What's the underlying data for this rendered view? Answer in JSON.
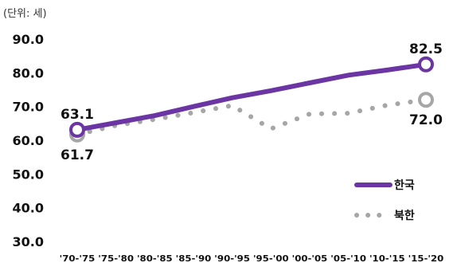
{
  "unit_label": "(단위: 세)",
  "colors": {
    "korea": "#6b35a3",
    "north": "#a6a6a6"
  },
  "chart_data": {
    "type": "line",
    "categories": [
      "'70-'75",
      "'75-'80",
      "'80-'85",
      "'85-'90",
      "'90-'95",
      "'95-'00",
      "'00-'05",
      "'05-'10",
      "'10-'15",
      "'15-'20"
    ],
    "yticks": [
      "30.0",
      "40.0",
      "50.0",
      "60.0",
      "70.0",
      "80.0",
      "90.0"
    ],
    "ylim": [
      30,
      90
    ],
    "grid": false,
    "legend_position": "bottom-right",
    "series": [
      {
        "name": "한국",
        "style": "solid",
        "values": [
          63.1,
          65.2,
          67.3,
          70.0,
          72.6,
          74.7,
          77.0,
          79.3,
          80.8,
          82.5
        ],
        "labels": [
          {
            "index": 0,
            "text": "63.1"
          },
          {
            "index": 9,
            "text": "82.5"
          }
        ]
      },
      {
        "name": "북한",
        "style": "dotted",
        "values": [
          61.7,
          64.4,
          66.2,
          68.2,
          70.3,
          63.4,
          67.8,
          68.0,
          70.4,
          72.0
        ],
        "labels": [
          {
            "index": 0,
            "text": "61.7"
          },
          {
            "index": 9,
            "text": "72.0"
          }
        ]
      }
    ]
  }
}
